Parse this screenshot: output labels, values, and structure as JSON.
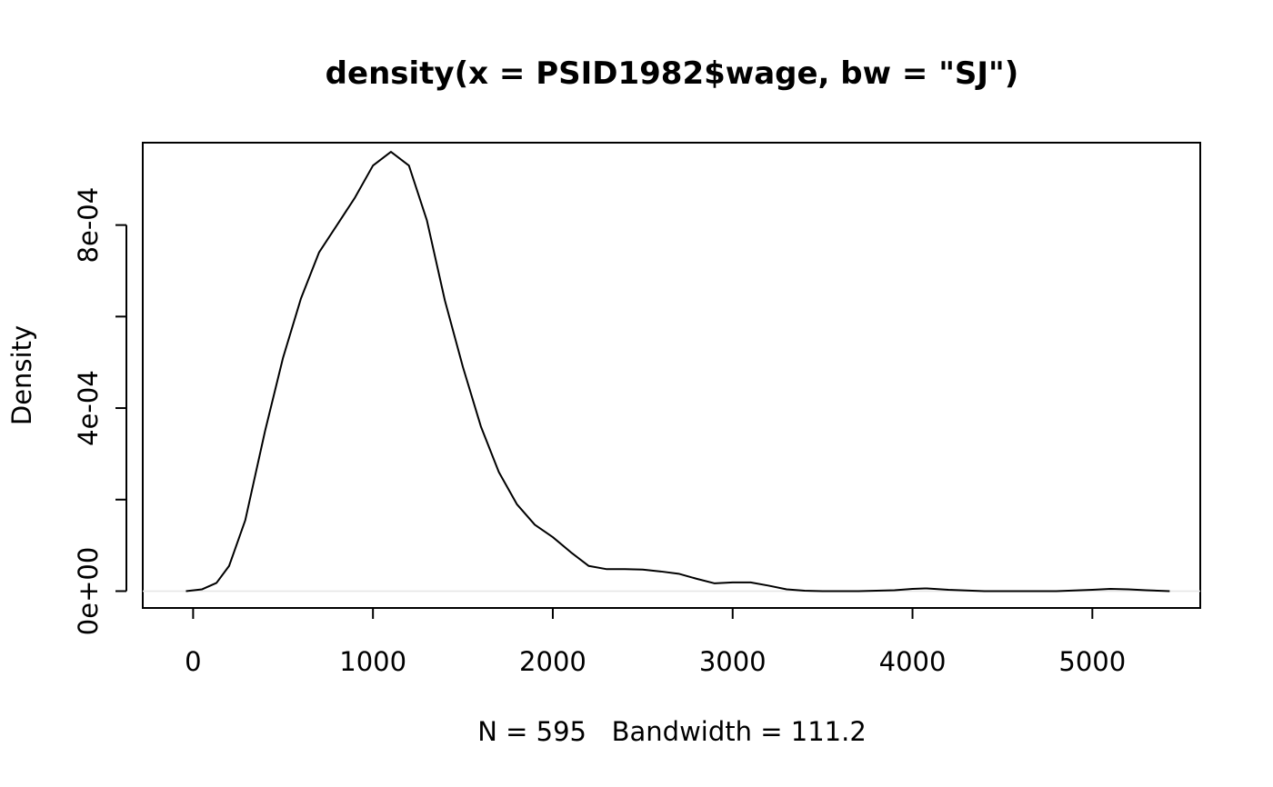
{
  "chart_data": {
    "type": "line",
    "title": "density(x = PSID1982$wage, bw = \"SJ\")",
    "xlabel": "N = 595   Bandwidth = 111.2",
    "ylabel": "Density",
    "xlim": [
      -280,
      5600
    ],
    "ylim": [
      -3.68e-05,
      0.00098
    ],
    "x_ticks": [
      0,
      1000,
      2000,
      3000,
      4000,
      5000
    ],
    "x_tick_labels": [
      "0",
      "1000",
      "2000",
      "3000",
      "4000",
      "5000"
    ],
    "y_ticks": [
      0,
      0.0002,
      0.0004,
      0.0006,
      0.0008
    ],
    "y_tick_labels": [
      "0e+00",
      "",
      "4e-04",
      "",
      "8e-04"
    ],
    "grid": false,
    "zero_line": true,
    "series": [
      {
        "x": [
          -40,
          50,
          130,
          200,
          290,
          400,
          500,
          600,
          700,
          800,
          900,
          1000,
          1100,
          1200,
          1300,
          1400,
          1500,
          1600,
          1700,
          1800,
          1900,
          2000,
          2100,
          2200,
          2300,
          2400,
          2500,
          2600,
          2700,
          2800,
          2900,
          3000,
          3100,
          3200,
          3300,
          3400,
          3500,
          3700,
          3900,
          4000,
          4080,
          4200,
          4400,
          4600,
          4800,
          5000,
          5100,
          5200,
          5300,
          5430
        ],
        "y": [
          0,
          4e-06,
          1.8e-05,
          5.5e-05,
          0.000155,
          0.00035,
          0.00051,
          0.00064,
          0.00074,
          0.0008,
          0.00086,
          0.00093,
          0.00096,
          0.00093,
          0.00081,
          0.000635,
          0.00049,
          0.00036,
          0.00026,
          0.00019,
          0.000145,
          0.000118,
          8.5e-05,
          5.5e-05,
          4.8e-05,
          4.8e-05,
          4.7e-05,
          4.3e-05,
          3.8e-05,
          2.7e-05,
          1.7e-05,
          1.9e-05,
          1.9e-05,
          1.2e-05,
          4e-06,
          1e-06,
          0,
          0,
          2e-06,
          5e-06,
          6e-06,
          3e-06,
          0,
          0,
          0,
          3e-06,
          5e-06,
          4e-06,
          2e-06,
          0
        ]
      }
    ]
  }
}
